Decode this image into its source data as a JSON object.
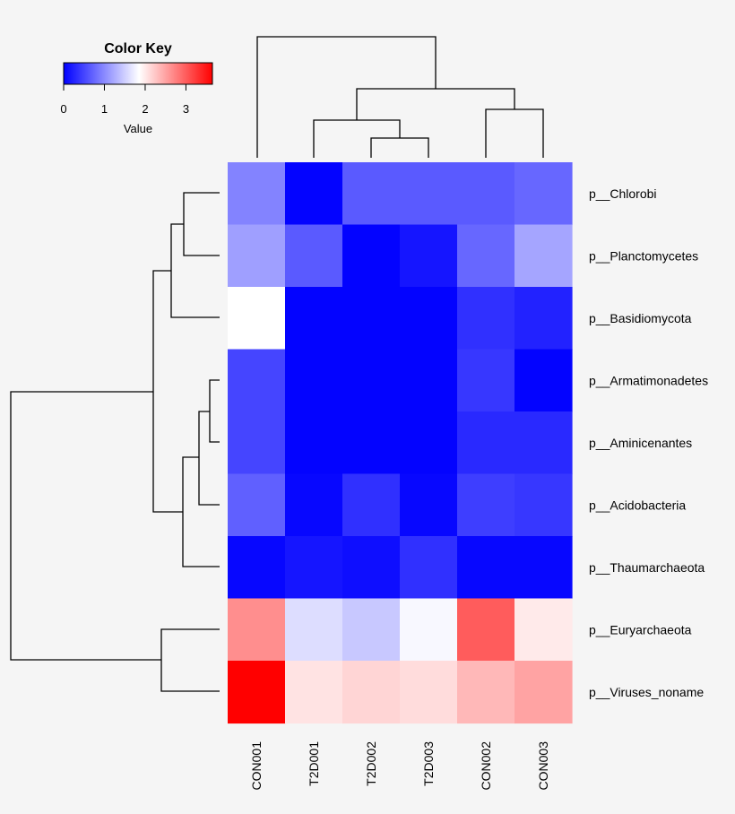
{
  "chart_data": {
    "type": "heatmap",
    "color_key": {
      "title": "Color Key",
      "xlabel": "Value",
      "ticks": [
        "0",
        "1",
        "2",
        "3"
      ],
      "range": [
        0,
        3.65
      ],
      "colors": {
        "low": "#0000ff",
        "mid": "#ffffff",
        "high": "#ff0000"
      },
      "mid_value": 1.85
    },
    "columns": [
      "CON001",
      "T2D001",
      "T2D002",
      "T2D003",
      "CON002",
      "CON003"
    ],
    "rows": [
      "p__Chlorobi",
      "p__Planctomycetes",
      "p__Basidiomycota",
      "p__Armatimonadetes",
      "p__Aminicenantes",
      "p__Acidobacteria",
      "p__Thaumarchaeota",
      "p__Euryarchaeota",
      "p__Viruses_noname"
    ],
    "values": [
      [
        0.95,
        0.02,
        0.65,
        0.65,
        0.65,
        0.75
      ],
      [
        1.15,
        0.65,
        0.02,
        0.15,
        0.75,
        1.2
      ],
      [
        1.85,
        0.02,
        0.02,
        0.02,
        0.35,
        0.25
      ],
      [
        0.5,
        0.02,
        0.02,
        0.02,
        0.4,
        0.02
      ],
      [
        0.5,
        0.02,
        0.02,
        0.02,
        0.3,
        0.3
      ],
      [
        0.7,
        0.05,
        0.35,
        0.05,
        0.45,
        0.4
      ],
      [
        0.05,
        0.15,
        0.1,
        0.35,
        0.05,
        0.05
      ],
      [
        2.65,
        1.6,
        1.45,
        1.8,
        3.0,
        2.0
      ],
      [
        3.65,
        2.05,
        2.15,
        2.1,
        2.35,
        2.5
      ]
    ]
  }
}
